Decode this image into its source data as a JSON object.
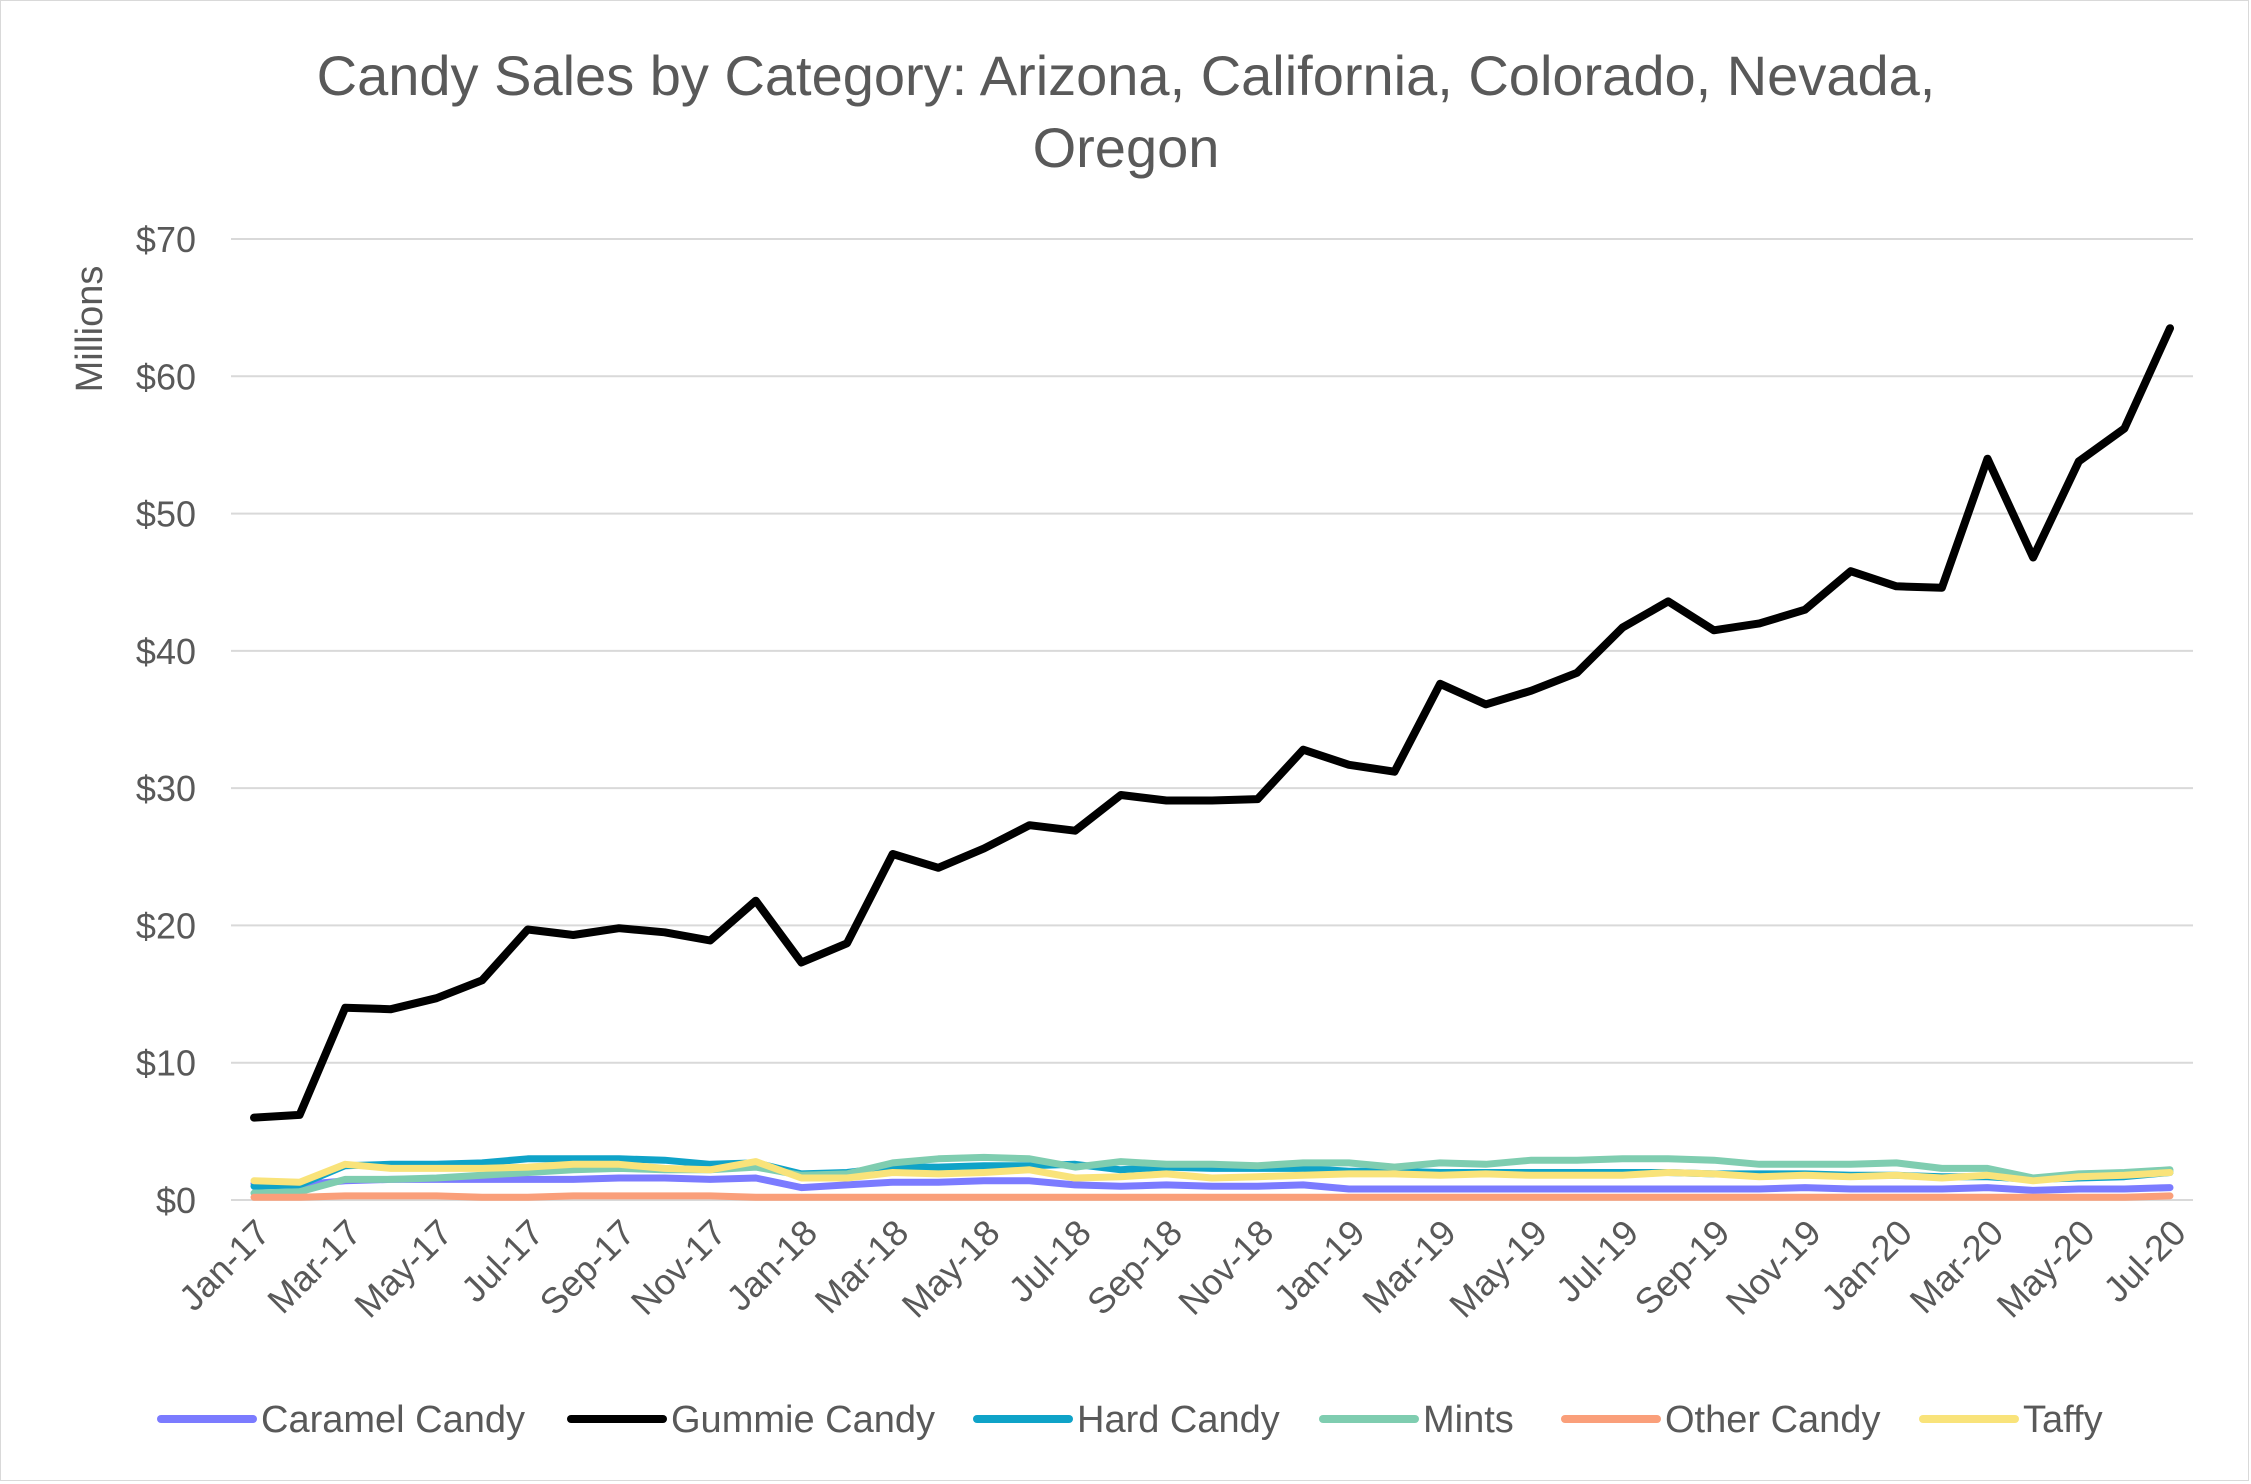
{
  "chart_data": {
    "type": "line",
    "title_lines": [
      "Candy Sales by Category: Arizona, California, Colorado, Nevada,",
      "Oregon"
    ],
    "ylabel": "Millions",
    "xlabel": "",
    "ylim": [
      0,
      70
    ],
    "y_ticks": [
      0,
      10,
      20,
      30,
      40,
      50,
      60,
      70
    ],
    "y_tick_labels": [
      "$0",
      "$10",
      "$20",
      "$30",
      "$40",
      "$50",
      "$60",
      "$70"
    ],
    "grid": true,
    "legend_position": "bottom",
    "x": [
      "Jan-17",
      "Feb-17",
      "Mar-17",
      "Apr-17",
      "May-17",
      "Jun-17",
      "Jul-17",
      "Aug-17",
      "Sep-17",
      "Oct-17",
      "Nov-17",
      "Dec-17",
      "Jan-18",
      "Feb-18",
      "Mar-18",
      "Apr-18",
      "May-18",
      "Jun-18",
      "Jul-18",
      "Aug-18",
      "Sep-18",
      "Oct-18",
      "Nov-18",
      "Dec-18",
      "Jan-19",
      "Feb-19",
      "Mar-19",
      "Apr-19",
      "May-19",
      "Jun-19",
      "Jul-19",
      "Aug-19",
      "Sep-19",
      "Oct-19",
      "Nov-19",
      "Dec-19",
      "Jan-20",
      "Feb-20",
      "Mar-20",
      "Apr-20",
      "May-20",
      "Jun-20",
      "Jul-20"
    ],
    "x_tick_labels": [
      "Jan-17",
      "Mar-17",
      "May-17",
      "Jul-17",
      "Sep-17",
      "Nov-17",
      "Jan-18",
      "Mar-18",
      "May-18",
      "Jul-18",
      "Sep-18",
      "Nov-18",
      "Jan-19",
      "Mar-19",
      "May-19",
      "Jul-19",
      "Sep-19",
      "Nov-19",
      "Jan-20",
      "Mar-20",
      "May-20",
      "Jul-20"
    ],
    "series": [
      {
        "name": "Caramel Candy",
        "color": "#7b7bff",
        "values": [
          1.2,
          1.1,
          1.4,
          1.5,
          1.5,
          1.5,
          1.5,
          1.5,
          1.6,
          1.6,
          1.5,
          1.6,
          0.9,
          1.1,
          1.3,
          1.3,
          1.4,
          1.4,
          1.1,
          1.0,
          1.1,
          1.0,
          1.0,
          1.1,
          0.8,
          0.8,
          0.8,
          0.8,
          0.8,
          0.8,
          0.8,
          0.8,
          0.8,
          0.8,
          0.9,
          0.8,
          0.8,
          0.8,
          0.9,
          0.7,
          0.8,
          0.8,
          0.9
        ]
      },
      {
        "name": "Hard Candy",
        "color": "#0fa3c8",
        "values": [
          1.0,
          1.1,
          2.5,
          2.6,
          2.6,
          2.7,
          3.0,
          3.0,
          3.0,
          2.9,
          2.6,
          2.7,
          1.9,
          2.0,
          2.4,
          2.4,
          2.5,
          2.5,
          2.6,
          2.2,
          2.4,
          2.3,
          2.3,
          2.3,
          2.1,
          2.1,
          2.0,
          2.0,
          2.0,
          2.0,
          2.0,
          2.0,
          1.9,
          1.9,
          1.9,
          1.8,
          1.8,
          1.7,
          1.7,
          1.5,
          1.6,
          1.7,
          2.0
        ]
      },
      {
        "name": "Mints",
        "color": "#7fcdb0",
        "values": [
          0.5,
          0.6,
          1.5,
          1.5,
          1.6,
          1.8,
          2.0,
          2.2,
          2.3,
          2.2,
          2.2,
          2.4,
          1.8,
          1.9,
          2.7,
          3.0,
          3.1,
          3.0,
          2.4,
          2.8,
          2.6,
          2.6,
          2.5,
          2.7,
          2.7,
          2.4,
          2.7,
          2.6,
          2.9,
          2.9,
          3.0,
          3.0,
          2.9,
          2.6,
          2.6,
          2.6,
          2.7,
          2.3,
          2.3,
          1.6,
          1.9,
          2.0,
          2.2
        ]
      },
      {
        "name": "Other Candy",
        "color": "#fa9f7a",
        "values": [
          0.2,
          0.2,
          0.3,
          0.3,
          0.3,
          0.2,
          0.2,
          0.3,
          0.3,
          0.3,
          0.3,
          0.2,
          0.2,
          0.2,
          0.2,
          0.2,
          0.2,
          0.2,
          0.2,
          0.2,
          0.2,
          0.2,
          0.2,
          0.2,
          0.2,
          0.2,
          0.2,
          0.2,
          0.2,
          0.2,
          0.2,
          0.2,
          0.2,
          0.2,
          0.2,
          0.2,
          0.2,
          0.2,
          0.2,
          0.2,
          0.2,
          0.2,
          0.3
        ]
      },
      {
        "name": "Taffy",
        "color": "#f9e37a",
        "values": [
          1.4,
          1.3,
          2.6,
          2.3,
          2.3,
          2.3,
          2.4,
          2.6,
          2.6,
          2.3,
          2.2,
          2.8,
          1.6,
          1.6,
          2.0,
          1.9,
          2.0,
          2.2,
          1.6,
          1.7,
          1.9,
          1.6,
          1.7,
          1.8,
          1.9,
          1.9,
          1.8,
          1.9,
          1.8,
          1.8,
          1.8,
          2.0,
          1.9,
          1.7,
          1.8,
          1.7,
          1.8,
          1.6,
          1.8,
          1.4,
          1.7,
          1.8,
          2.0
        ]
      },
      {
        "name": "Gummie Candy",
        "color": "#000000",
        "values": [
          6.0,
          6.2,
          14.0,
          13.9,
          14.7,
          16.0,
          19.7,
          19.3,
          19.8,
          19.5,
          18.9,
          21.8,
          17.3,
          18.7,
          25.2,
          24.2,
          25.6,
          27.3,
          26.9,
          29.5,
          29.1,
          29.1,
          29.2,
          32.8,
          31.7,
          31.2,
          37.6,
          36.1,
          37.1,
          38.4,
          41.7,
          43.6,
          41.5,
          42.0,
          43.0,
          45.8,
          44.7,
          44.6,
          54.0,
          46.8,
          53.8,
          56.2,
          63.5
        ]
      }
    ],
    "legend_order": [
      "Caramel Candy",
      "Gummie Candy",
      "Hard Candy",
      "Mints",
      "Other Candy",
      "Taffy"
    ]
  }
}
